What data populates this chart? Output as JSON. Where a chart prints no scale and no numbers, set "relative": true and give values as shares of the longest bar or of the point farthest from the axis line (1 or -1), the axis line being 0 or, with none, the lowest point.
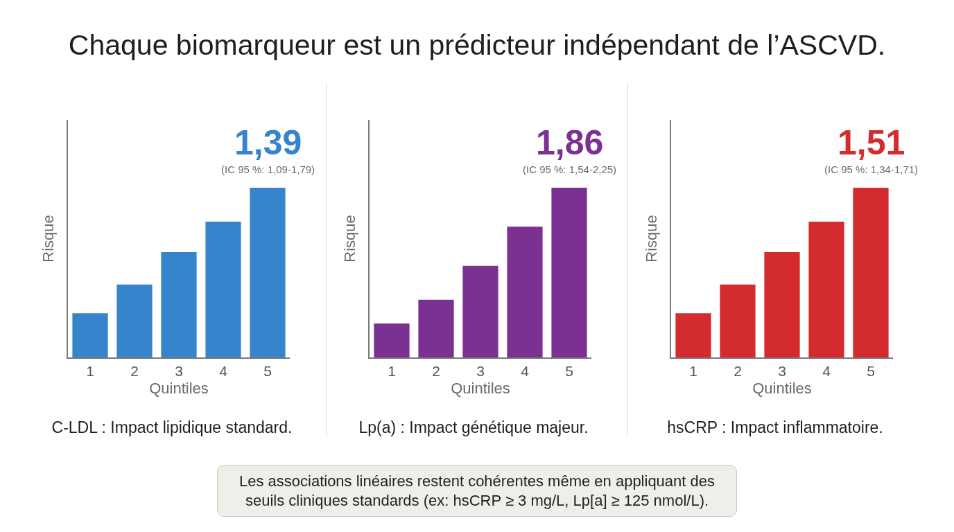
{
  "chart_data": [
    {
      "type": "other",
      "title": "Chaque biomarqueur est un prédicteur indépendant de l’ASCVD.",
      "annotations": [
        "Les associations linéaires restent cohérentes même en appliquant des seuils cliniques standards (ex: hsCRP ≥ 3 mg/L, Lp[a] ≥ 125 nmol/L)."
      ]
    },
    {
      "type": "bar",
      "relative": true,
      "categories": [
        "1",
        "2",
        "3",
        "4",
        "5"
      ],
      "values": [
        0.26,
        0.43,
        0.62,
        0.8,
        1
      ],
      "color": "#3584cc",
      "xlabel": "Quintiles",
      "ylabel": "Risque",
      "annotations": [
        {
          "text": "1,39",
          "x": "5",
          "y": 1
        },
        {
          "text": "(IC 95 %: 1,09-1,79)",
          "x": "5",
          "y": 1
        },
        "C-LDL : Impact lipidique standard."
      ]
    },
    {
      "type": "bar",
      "relative": true,
      "categories": [
        "1",
        "2",
        "3",
        "4",
        "5"
      ],
      "values": [
        0.2,
        0.34,
        0.54,
        0.77,
        1
      ],
      "color": "#7b3192",
      "xlabel": "Quintiles",
      "ylabel": "Risque",
      "annotations": [
        {
          "text": "1,86",
          "x": "5",
          "y": 1
        },
        {
          "text": "(IC 95 %: 1,54-2,25)",
          "x": "5",
          "y": 1
        },
        "Lp(a) : Impact génétique majeur."
      ]
    },
    {
      "type": "bar",
      "relative": true,
      "categories": [
        "1",
        "2",
        "3",
        "4",
        "5"
      ],
      "values": [
        0.26,
        0.43,
        0.62,
        0.8,
        1
      ],
      "color": "#d42b2e",
      "xlabel": "Quintiles",
      "ylabel": "Risque",
      "annotations": [
        {
          "text": "1,51",
          "x": "5",
          "y": 1
        },
        {
          "text": "(IC 95 %: 1,34-1,71)",
          "x": "5",
          "y": 1
        },
        "hsCRP : Impact inflammatoire."
      ]
    }
  ]
}
